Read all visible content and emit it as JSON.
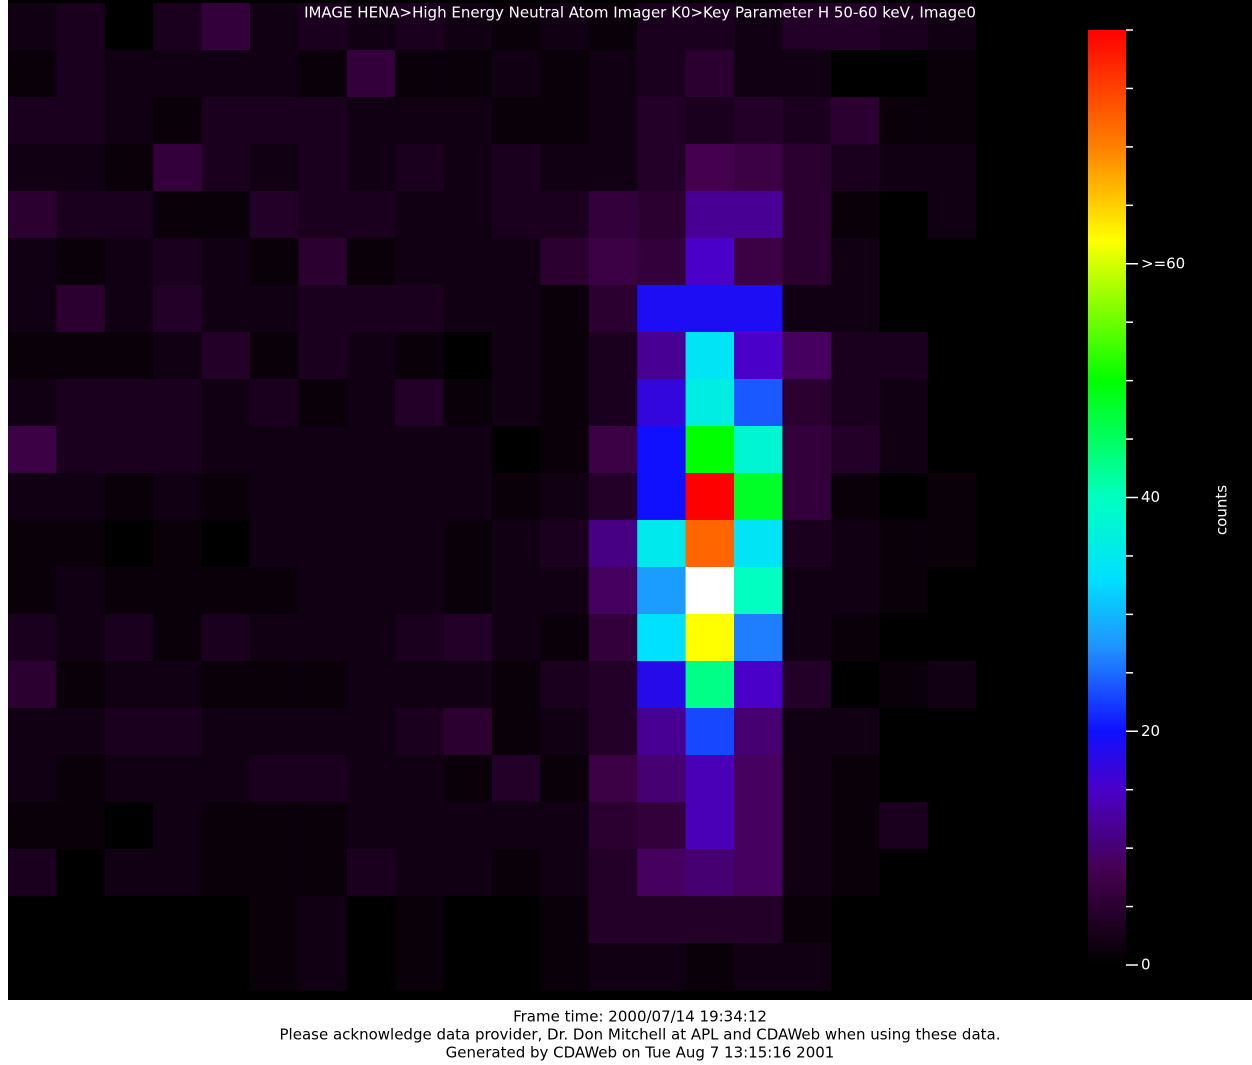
{
  "chart_data": {
    "type": "heatmap",
    "title": "IMAGE  HENA>High Energy Neutral Atom Imager  K0>Key Parameter H 50-60 keV, Image0",
    "footer": [
      "Frame time: 2000/07/14 19:34:12",
      "Please acknowledge data provider, Dr. Don Mitchell at APL and CDAWeb when using these data.",
      "Generated by CDAWeb on Tue Aug  7 13:15:16 2001"
    ],
    "colorbar_label": "counts",
    "clim": [
      0,
      80
    ],
    "cticks": [
      0,
      20,
      40,
      {
        "value": 60,
        "label": ">=60"
      }
    ],
    "cticks_minor": [
      5,
      10,
      15,
      25,
      30,
      35,
      45,
      50,
      55,
      65,
      70,
      75,
      80
    ],
    "colorscale": [
      [
        0,
        "#000000"
      ],
      [
        8,
        "#45004f"
      ],
      [
        15,
        "#4a00c8"
      ],
      [
        20,
        "#1010ff"
      ],
      [
        27,
        "#2090ff"
      ],
      [
        33,
        "#00e0ff"
      ],
      [
        40,
        "#00ffc0"
      ],
      [
        50,
        "#00ff00"
      ],
      [
        62,
        "#ffff00"
      ],
      [
        70,
        "#ff8000"
      ],
      [
        80,
        "#ff0000"
      ]
    ],
    "over_color": "#ffffff",
    "z": [
      [
        2,
        3,
        0,
        3,
        6,
        2,
        3,
        2,
        3,
        2,
        1,
        2,
        1,
        3,
        3,
        2,
        4,
        4,
        3,
        2
      ],
      [
        1,
        3,
        2,
        2,
        2,
        2,
        1,
        6,
        1,
        1,
        2,
        1,
        2,
        3,
        5,
        2,
        2,
        0,
        0,
        1
      ],
      [
        3,
        3,
        2,
        1,
        3,
        3,
        3,
        2,
        2,
        2,
        1,
        1,
        2,
        4,
        3,
        4,
        3,
        5,
        1,
        1
      ],
      [
        2,
        2,
        1,
        6,
        3,
        2,
        3,
        2,
        3,
        2,
        3,
        2,
        2,
        4,
        8,
        7,
        5,
        3,
        2,
        2
      ],
      [
        5,
        3,
        3,
        1,
        1,
        4,
        3,
        3,
        2,
        2,
        3,
        3,
        6,
        5,
        12,
        12,
        5,
        1,
        0,
        2
      ],
      [
        2,
        1,
        2,
        3,
        2,
        1,
        5,
        1,
        2,
        2,
        2,
        5,
        7,
        6,
        15,
        7,
        5,
        2,
        0,
        0
      ],
      [
        2,
        5,
        2,
        4,
        2,
        2,
        3,
        3,
        3,
        2,
        2,
        1,
        5,
        19,
        19,
        19,
        2,
        2,
        0,
        0
      ],
      [
        1,
        1,
        1,
        2,
        4,
        1,
        3,
        2,
        1,
        0,
        2,
        1,
        3,
        12,
        34,
        15,
        9,
        3,
        3,
        0
      ],
      [
        2,
        3,
        3,
        3,
        2,
        3,
        1,
        2,
        4,
        1,
        2,
        1,
        3,
        17,
        36,
        24,
        5,
        3,
        2,
        0
      ],
      [
        7,
        3,
        3,
        3,
        2,
        2,
        2,
        2,
        2,
        2,
        0,
        1,
        7,
        20,
        50,
        38,
        6,
        4,
        2,
        0
      ],
      [
        2,
        2,
        1,
        2,
        1,
        2,
        2,
        2,
        2,
        2,
        1,
        2,
        4,
        20,
        80,
        48,
        6,
        1,
        0,
        1
      ],
      [
        1,
        1,
        0,
        1,
        0,
        2,
        2,
        2,
        2,
        1,
        2,
        3,
        11,
        35,
        72,
        34,
        3,
        2,
        1,
        1
      ],
      [
        1,
        2,
        1,
        1,
        1,
        1,
        2,
        2,
        2,
        1,
        2,
        2,
        9,
        28,
        95,
        40,
        2,
        2,
        1,
        0
      ],
      [
        3,
        2,
        3,
        1,
        3,
        2,
        2,
        2,
        3,
        4,
        2,
        1,
        6,
        33,
        62,
        26,
        2,
        1,
        0,
        0
      ],
      [
        5,
        1,
        2,
        2,
        1,
        1,
        1,
        2,
        2,
        2,
        1,
        3,
        4,
        18,
        43,
        15,
        4,
        0,
        1,
        2
      ],
      [
        2,
        2,
        3,
        3,
        2,
        2,
        2,
        2,
        3,
        5,
        1,
        2,
        4,
        12,
        23,
        10,
        2,
        2,
        0,
        0
      ],
      [
        2,
        1,
        2,
        2,
        2,
        3,
        3,
        2,
        2,
        1,
        4,
        1,
        7,
        10,
        14,
        9,
        2,
        1,
        0,
        0
      ],
      [
        1,
        1,
        0,
        2,
        1,
        1,
        1,
        2,
        2,
        2,
        2,
        2,
        5,
        6,
        14,
        9,
        2,
        1,
        3,
        0
      ],
      [
        3,
        0,
        2,
        2,
        1,
        1,
        1,
        3,
        2,
        2,
        1,
        2,
        4,
        9,
        10,
        9,
        2,
        1,
        0,
        0
      ],
      [
        0,
        0,
        0,
        0,
        0,
        1,
        2,
        0,
        1,
        0,
        0,
        1,
        4,
        4,
        4,
        4,
        1,
        0,
        0,
        0
      ],
      [
        0,
        0,
        0,
        0,
        0,
        1,
        2,
        0,
        1,
        0,
        0,
        1,
        2,
        2,
        1,
        2,
        2,
        0,
        0,
        0
      ]
    ]
  }
}
